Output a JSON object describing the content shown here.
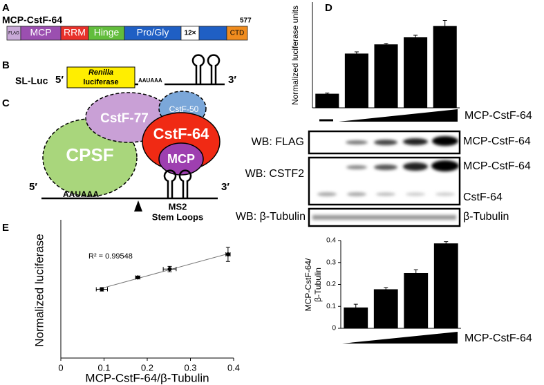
{
  "panel_labels": [
    "A",
    "B",
    "C",
    "D",
    "E"
  ],
  "construct": {
    "name": "MCP-CstF-64",
    "length": 577,
    "domains": [
      "FLAG",
      "MCP",
      "RRM",
      "Hinge",
      "Pro/Gly",
      "12×",
      "CTD"
    ]
  },
  "reporter": {
    "name": "SL-Luc",
    "five_prime": "5′",
    "gene_italic": "Renilla",
    "gene": "luciferase",
    "signal": "AAUAAA",
    "three_prime": "3′"
  },
  "complex": {
    "proteins": [
      "CstF-77",
      "CstF-50",
      "CPSF",
      "CstF-64",
      "MCP"
    ],
    "five_prime": "5′",
    "signal": "AAUAAA",
    "three_prime": "3′",
    "loops": [
      "MS2",
      "Stem Loops"
    ]
  },
  "western_blot": {
    "left_labels": [
      "WB: FLAG",
      "WB: CSTF2",
      "WB: β-Tubulin"
    ],
    "right_labels": [
      "MCP-CstF-64",
      "MCP-CstF-64",
      "CstF-64",
      "β-Tubulin"
    ]
  },
  "chart_data": [
    {
      "type": "bar",
      "ylabel": "Normalized luciferase units",
      "xlabel": "MCP-CstF-64",
      "categories": [
        null,
        null,
        null,
        null,
        null
      ],
      "values": [
        1,
        3.85,
        4.5,
        5.0,
        5.8
      ],
      "errors": [
        0.05,
        0.12,
        0.07,
        0.15,
        0.4
      ],
      "color": "#000000",
      "ylim": [
        0,
        7.5
      ]
    },
    {
      "type": "bar",
      "ylabel": [
        "MCP-CstF-64/",
        "β-Tubulin"
      ],
      "xlabel": "MCP-CstF-64",
      "categories": [
        null,
        null,
        null,
        null
      ],
      "values": [
        0.095,
        0.178,
        0.252,
        0.387
      ],
      "errors": [
        0.015,
        0.008,
        0.015,
        0.008
      ],
      "color": "#000000",
      "ylim": [
        0,
        0.4
      ],
      "yticks": [
        0,
        0.1,
        0.2,
        0.3,
        0.4
      ]
    },
    {
      "type": "scatter",
      "xlabel": "MCP-CstF-64/β-Tubulin",
      "ylabel": "Normalized luciferase",
      "annotation": "R² = 0.99548",
      "x": [
        0.095,
        0.178,
        0.252,
        0.387
      ],
      "y": [
        3.88,
        4.55,
        5.02,
        5.85
      ],
      "xerr": [
        0.013,
        0.005,
        0.015,
        0.005
      ],
      "yerr": [
        0.1,
        0.07,
        0.15,
        0.4
      ],
      "color": "#000000",
      "trendline": true,
      "xlim": [
        0,
        0.4
      ],
      "xticks": [
        0,
        0.1,
        0.2,
        0.3,
        0.4
      ],
      "ylim": [
        0,
        7.8
      ]
    }
  ]
}
